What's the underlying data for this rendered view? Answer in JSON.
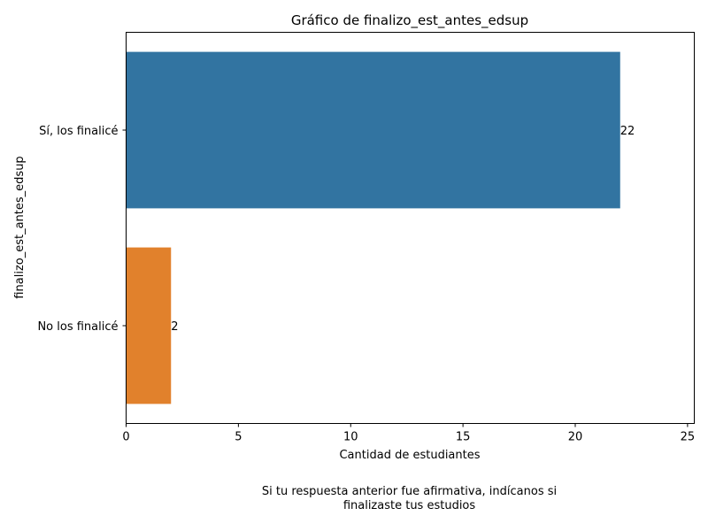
{
  "chart_data": {
    "type": "bar",
    "orientation": "horizontal",
    "title": "Gráfico de finalizo_est_antes_edsup",
    "xlabel": "Cantidad de estudiantes",
    "ylabel": "finalizo_est_antes_edsup",
    "categories": [
      "Sí, los finalicé",
      "No los finalicé"
    ],
    "values": [
      22,
      2
    ],
    "data_labels": [
      "22",
      "2"
    ],
    "colors": [
      "#3274a1",
      "#e1812c"
    ],
    "xlim": [
      0,
      25.3
    ],
    "xticks": [
      0,
      5,
      10,
      15,
      20,
      25
    ],
    "grid": false
  },
  "caption": {
    "line1": "Si tu respuesta anterior fue afirmativa, indícanos si",
    "line2": "finalizaste tus estudios"
  }
}
